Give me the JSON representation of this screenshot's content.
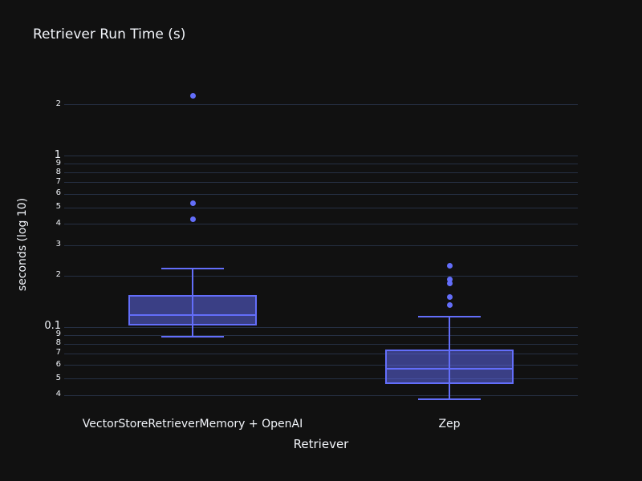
{
  "chart_data": {
    "type": "box",
    "title": "Retriever Run Time (s)",
    "xlabel": "Retriever",
    "ylabel": "seconds (log 10)",
    "yscale": "log10",
    "ylim": [
      0.03,
      2.78
    ],
    "grid": true,
    "legend": false,
    "colors": {
      "background": "#111111",
      "grid": "#263043",
      "box_line": "#636efa",
      "box_fill": "rgba(99,110,250,0.5)",
      "text": "#f2f5fa"
    },
    "categories": [
      "VectorStoreRetrieverMemory + OpenAI",
      "Zep"
    ],
    "yticks": [
      {
        "value": 0.04,
        "label": "4",
        "minor": true
      },
      {
        "value": 0.05,
        "label": "5",
        "minor": true
      },
      {
        "value": 0.06,
        "label": "6",
        "minor": true
      },
      {
        "value": 0.07,
        "label": "7",
        "minor": true
      },
      {
        "value": 0.08,
        "label": "8",
        "minor": true
      },
      {
        "value": 0.09,
        "label": "9",
        "minor": true
      },
      {
        "value": 0.1,
        "label": "0.1",
        "minor": false
      },
      {
        "value": 0.2,
        "label": "2",
        "minor": true
      },
      {
        "value": 0.3,
        "label": "3",
        "minor": true
      },
      {
        "value": 0.4,
        "label": "4",
        "minor": true
      },
      {
        "value": 0.5,
        "label": "5",
        "minor": true
      },
      {
        "value": 0.6,
        "label": "6",
        "minor": true
      },
      {
        "value": 0.7,
        "label": "7",
        "minor": true
      },
      {
        "value": 0.8,
        "label": "8",
        "minor": true
      },
      {
        "value": 0.9,
        "label": "9",
        "minor": true
      },
      {
        "value": 1,
        "label": "1",
        "minor": false
      },
      {
        "value": 2,
        "label": "2",
        "minor": true
      }
    ],
    "series": [
      {
        "name": "VectorStoreRetrieverMemory + OpenAI",
        "whisker_low": 0.088,
        "q1": 0.103,
        "median": 0.118,
        "q3": 0.155,
        "whisker_high": 0.22,
        "outliers": [
          2.25,
          0.53,
          0.43
        ]
      },
      {
        "name": "Zep",
        "whisker_low": 0.038,
        "q1": 0.0465,
        "median": 0.0575,
        "q3": 0.074,
        "whisker_high": 0.115,
        "outliers": [
          0.23,
          0.19,
          0.18,
          0.15,
          0.135
        ]
      }
    ]
  }
}
